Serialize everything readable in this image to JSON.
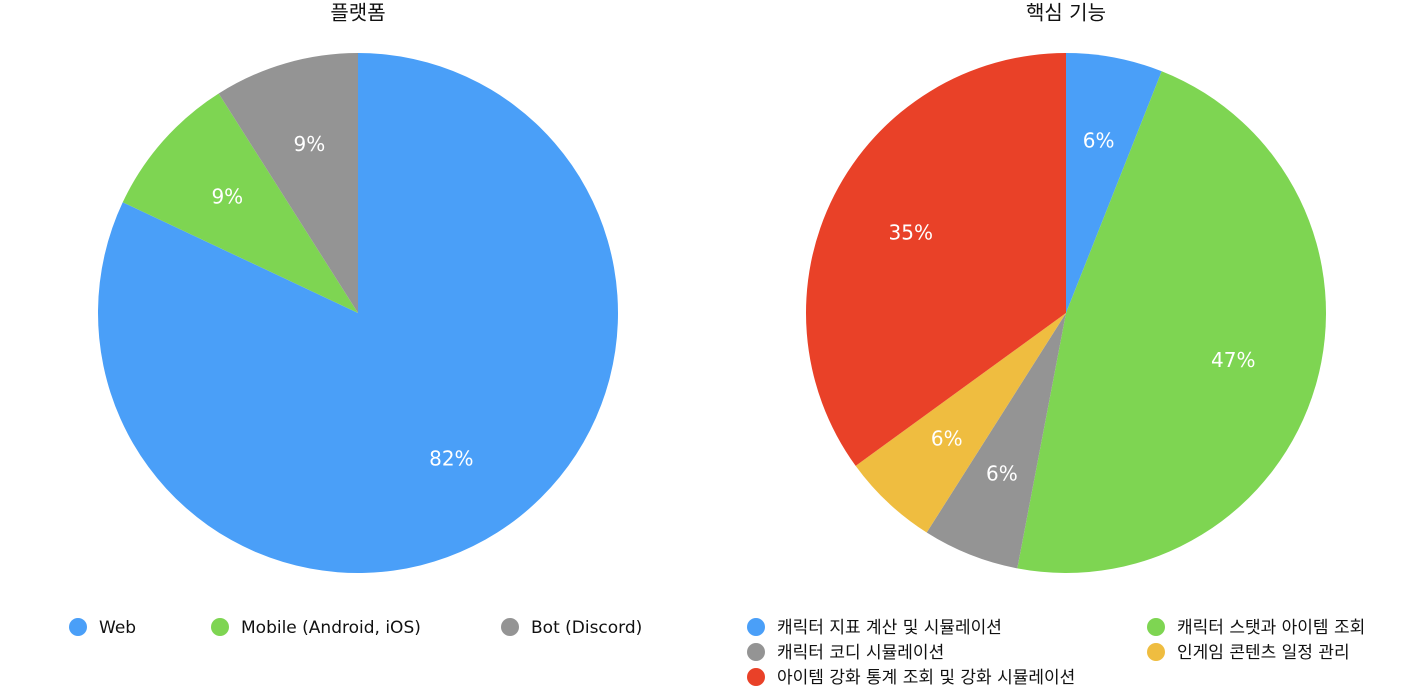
{
  "chart_data": [
    {
      "type": "pie",
      "title": "플랫폼",
      "categories": [
        "Web",
        "Mobile (Android, iOS)",
        "Bot (Discord)"
      ],
      "values": [
        82,
        9,
        9
      ],
      "value_labels": [
        "82%",
        "9%",
        "9%"
      ],
      "colors": [
        "#4a9ff8",
        "#7ed552",
        "#949494"
      ]
    },
    {
      "type": "pie",
      "title": "핵심 기능",
      "categories": [
        "캐릭터 지표 계산 및 시뮬레이션",
        "캐릭터 스탯과 아이템 조회",
        "캐릭터 코디 시뮬레이션",
        "인게임 콘텐츠 일정 관리",
        "아이템 강화 통계 조회 및 강화 시뮬레이션"
      ],
      "values": [
        6,
        47,
        6,
        6,
        35
      ],
      "value_labels": [
        "6%",
        "47%",
        "6%",
        "6%",
        "35%"
      ],
      "colors": [
        "#4a9ff8",
        "#7ed552",
        "#949494",
        "#efbd40",
        "#e94128"
      ]
    }
  ]
}
